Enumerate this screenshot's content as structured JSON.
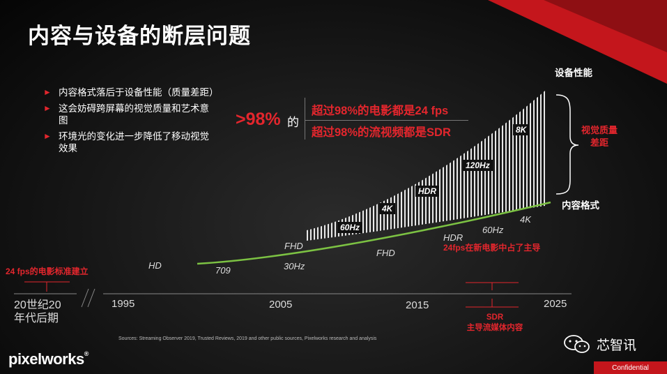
{
  "title": "内容与设备的断层问题",
  "bullets": [
    "内容格式落后于设备性能（质量差距）",
    "这会妨碍跨屏幕的视觉质量和艺术意图",
    "环境光的变化进一步降低了移动视觉效果"
  ],
  "stats": {
    "percent": ">98%",
    "connector": "的",
    "line1": "超过98%的电影都是24 fps",
    "line2": "超过98%的流视频都是SDR"
  },
  "curve_labels": {
    "device": "设备性能",
    "content": "内容格式",
    "gap": "视觉质量差距"
  },
  "device_tags": [
    "60Hz",
    "4K",
    "HDR",
    "120Hz",
    "8K"
  ],
  "content_labels": {
    "hd": "HD",
    "r709": "709",
    "fhd_top": "FHD",
    "hz30": "30Hz",
    "fhd": "FHD",
    "hdr": "HDR",
    "hz60": "60Hz",
    "k4": "4K"
  },
  "notes": {
    "fps24_standard": "24 fps的电影标准建立",
    "fps24_dominant": "24fps在新电影中占了主导",
    "sdr_label": "SDR",
    "sdr_sub": "主导流媒体内容"
  },
  "timeline": {
    "decade": "20世纪20年代后期",
    "decade_line1": "20世纪20",
    "decade_line2": "年代后期",
    "years": [
      "1995",
      "2005",
      "2015",
      "2025"
    ]
  },
  "sources": "Sources: Streaming Observer 2019, Trusted Reviews, 2019 and other public sources, Pixelworks research and analysis",
  "brand": {
    "logo": "pixelworks",
    "registered": "®",
    "wechat": "芯智讯",
    "confidential": "Confidential"
  },
  "colors": {
    "accent": "#e3262d",
    "curve": "#7cc243"
  }
}
